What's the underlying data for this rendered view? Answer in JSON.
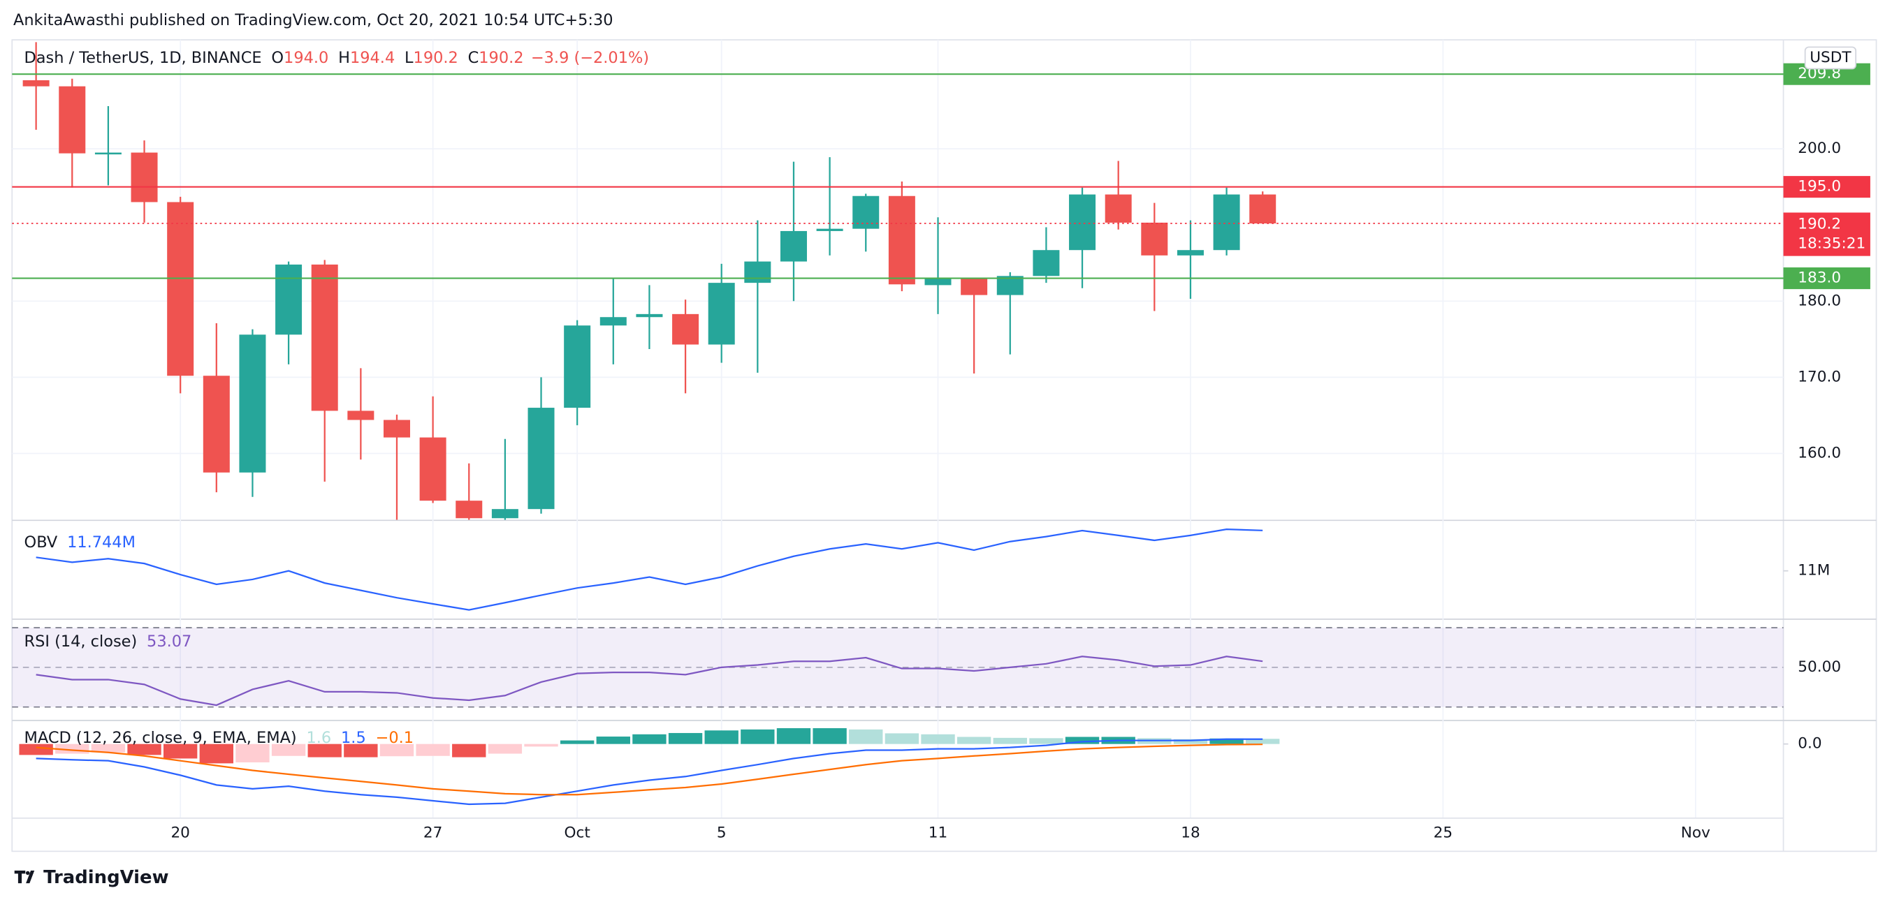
{
  "header": {
    "text": "AnkitaAwasthi published on TradingView.com, Oct 20, 2021 10:54 UTC+5:30"
  },
  "footer": {
    "text": "TradingView"
  },
  "chart_data": [
    {
      "type": "candlestick",
      "title": "Dash / TetherUS, 1D, BINANCE",
      "ohlc_legend": [
        {
          "key": "O",
          "value": "194.0"
        },
        {
          "key": "H",
          "value": "194.4"
        },
        {
          "key": "L",
          "value": "190.2"
        },
        {
          "key": "C",
          "value": "190.2"
        }
      ],
      "change": "−3.9 (−2.01%)",
      "currency": "USDT",
      "x": [
        "2021-09-16",
        "2021-09-17",
        "2021-09-18",
        "2021-09-19",
        "2021-09-20",
        "2021-09-21",
        "2021-09-22",
        "2021-09-23",
        "2021-09-24",
        "2021-09-25",
        "2021-09-26",
        "2021-09-27",
        "2021-09-28",
        "2021-09-29",
        "2021-09-30",
        "2021-10-01",
        "2021-10-02",
        "2021-10-03",
        "2021-10-04",
        "2021-10-05",
        "2021-10-06",
        "2021-10-07",
        "2021-10-08",
        "2021-10-09",
        "2021-10-10",
        "2021-10-11",
        "2021-10-12",
        "2021-10-13",
        "2021-10-14",
        "2021-10-15",
        "2021-10-16",
        "2021-10-17",
        "2021-10-18",
        "2021-10-19",
        "2021-10-20"
      ],
      "open": [
        209.0,
        208.2,
        199.4,
        199.5,
        193.0,
        170.2,
        157.5,
        175.6,
        184.8,
        165.6,
        164.4,
        162.1,
        153.8,
        151.5,
        152.7,
        166.0,
        176.8,
        177.9,
        178.3,
        174.3,
        182.4,
        185.2,
        189.2,
        189.5,
        193.8,
        182.1,
        183.0,
        180.8,
        183.3,
        186.7,
        194.0,
        190.3,
        186.0,
        186.7,
        194.0
      ],
      "high": [
        214.0,
        209.2,
        205.6,
        201.1,
        193.7,
        177.1,
        176.3,
        185.2,
        185.4,
        171.2,
        165.1,
        167.5,
        158.7,
        161.9,
        170.0,
        177.5,
        183.0,
        182.1,
        180.2,
        184.9,
        190.6,
        198.3,
        198.9,
        194.1,
        195.7,
        191.0,
        183.0,
        183.8,
        189.7,
        194.9,
        198.4,
        192.9,
        190.6,
        194.9,
        194.4
      ],
      "low": [
        202.5,
        194.9,
        195.2,
        190.3,
        167.9,
        154.9,
        154.3,
        171.7,
        156.3,
        159.2,
        151.3,
        153.5,
        151.3,
        151.3,
        152.1,
        163.7,
        171.7,
        173.7,
        167.9,
        171.9,
        170.6,
        180.0,
        186.0,
        186.5,
        181.3,
        178.3,
        170.5,
        173.0,
        182.4,
        181.7,
        189.4,
        178.7,
        180.3,
        186.0,
        190.2
      ],
      "close": [
        208.2,
        199.4,
        199.5,
        193.0,
        170.2,
        157.5,
        175.6,
        184.8,
        165.6,
        164.4,
        162.1,
        153.8,
        151.5,
        152.7,
        166.0,
        176.8,
        177.9,
        178.3,
        174.3,
        182.4,
        185.2,
        189.2,
        189.5,
        193.8,
        182.2,
        183.0,
        180.8,
        183.3,
        186.7,
        194.0,
        190.3,
        186.0,
        186.7,
        194.0,
        190.2
      ],
      "up_color": "#26a69a",
      "down_color": "#ef5350",
      "xlim": [
        "2021-09-15",
        "2021-11-03"
      ],
      "xticks": [
        {
          "value": "2021-09-20",
          "label": "20"
        },
        {
          "value": "2021-09-27",
          "label": "27"
        },
        {
          "value": "2021-10-01",
          "label": "Oct"
        },
        {
          "value": "2021-10-05",
          "label": "5"
        },
        {
          "value": "2021-10-11",
          "label": "11"
        },
        {
          "value": "2021-10-18",
          "label": "18"
        },
        {
          "value": "2021-10-25",
          "label": "25"
        },
        {
          "value": "2021-11-01",
          "label": "Nov"
        }
      ],
      "ylim": [
        151.3,
        214.3
      ],
      "yticks": [
        {
          "value": 160,
          "label": "160.0"
        },
        {
          "value": 170,
          "label": "170.0"
        },
        {
          "value": 180,
          "label": "180.0"
        },
        {
          "value": 200,
          "label": "200.0"
        }
      ],
      "grid": true,
      "hlines": [
        {
          "value": 209.8,
          "label": "209.8",
          "color": "#4caf50"
        },
        {
          "value": 195.0,
          "label": "195.0",
          "color": "#f23645"
        },
        {
          "value": 183.0,
          "label": "183.0",
          "color": "#4caf50"
        }
      ],
      "last_price": {
        "value": 190.2,
        "label": "190.2",
        "countdown": "18:35:21",
        "color": "#f23645"
      }
    },
    {
      "type": "line",
      "title": "OBV",
      "series": [
        {
          "name": "OBV",
          "color": "#2962ff",
          "legend_label": "11.744M",
          "values": [
            11.248,
            11.158,
            11.225,
            11.135,
            10.932,
            10.752,
            10.842,
            11.0,
            10.775,
            10.64,
            10.505,
            10.392,
            10.279,
            10.414,
            10.55,
            10.685,
            10.775,
            10.887,
            10.752,
            10.887,
            11.09,
            11.27,
            11.405,
            11.495,
            11.405,
            11.518,
            11.383,
            11.541,
            11.631,
            11.743,
            11.653,
            11.563,
            11.653,
            11.766,
            11.744
          ]
        }
      ],
      "ylim": [
        10.12,
        11.92
      ],
      "yticks": [
        {
          "value": 11,
          "label": "11M"
        }
      ]
    },
    {
      "type": "line",
      "title": "RSI (14, close)",
      "series": [
        {
          "name": "RSI",
          "color": "#7e57c2",
          "values": [
            46.3,
            43.8,
            43.8,
            41.4,
            34.0,
            30.9,
            38.9,
            43.2,
            37.7,
            37.7,
            37.1,
            34.6,
            33.4,
            35.8,
            42.6,
            46.9,
            47.5,
            47.5,
            46.3,
            50.0,
            51.2,
            53.1,
            53.1,
            54.9,
            49.4,
            49.4,
            48.2,
            50.0,
            51.8,
            55.5,
            53.7,
            50.6,
            51.2,
            55.5,
            53.07
          ]
        }
      ],
      "band": [
        30,
        70
      ],
      "band_color": "#7e57c2",
      "ylim": [
        23.5,
        74
      ],
      "yticks": [
        {
          "value": 50,
          "label": "50.00"
        },
        30,
        70
      ]
    },
    {
      "type": "macd",
      "title": "MACD (12, 26, close, 9, EMA, EMA)",
      "series": [
        {
          "name": "Histogram",
          "kind": "histogram",
          "color": "#b2dfdb",
          "legend_label": "1.6",
          "colors": {
            "up_grow": "#26a69a",
            "up_fall": "#b2dfdb",
            "down_grow": "#ef5350",
            "down_fall": "#ffcdd2"
          },
          "values": [
            -3.4,
            -3.0,
            -2.6,
            -3.4,
            -4.5,
            -6.0,
            -5.7,
            -3.7,
            -4.1,
            -4.1,
            -3.8,
            -3.7,
            -4.1,
            -3.0,
            -0.8,
            1.1,
            2.3,
            3.0,
            3.4,
            4.2,
            4.5,
            4.9,
            4.9,
            4.5,
            3.3,
            3.0,
            2.2,
            1.9,
            1.8,
            2.2,
            2.2,
            1.8,
            1.5,
            1.7,
            1.6
          ]
        },
        {
          "name": "MACD",
          "kind": "line",
          "color": "#2962ff",
          "legend_label": "1.5",
          "values": [
            -4.5,
            -4.9,
            -5.2,
            -7.1,
            -9.7,
            -12.7,
            -13.9,
            -13.1,
            -14.6,
            -15.7,
            -16.5,
            -17.6,
            -18.7,
            -18.4,
            -16.5,
            -14.6,
            -12.7,
            -11.2,
            -10.1,
            -8.2,
            -6.4,
            -4.5,
            -3.0,
            -1.9,
            -1.9,
            -1.5,
            -1.5,
            -1.1,
            -0.4,
            0.7,
            1.1,
            1.1,
            1.1,
            1.5,
            1.5
          ]
        },
        {
          "name": "Signal",
          "kind": "line",
          "color": "#ff6d00",
          "legend_label": "−0.1",
          "values": [
            -1.1,
            -1.9,
            -2.6,
            -3.7,
            -5.2,
            -6.7,
            -8.2,
            -9.4,
            -10.5,
            -11.6,
            -12.7,
            -13.9,
            -14.6,
            -15.4,
            -15.7,
            -15.7,
            -15.0,
            -14.2,
            -13.5,
            -12.4,
            -10.9,
            -9.4,
            -7.9,
            -6.4,
            -5.2,
            -4.5,
            -3.7,
            -3.0,
            -2.2,
            -1.5,
            -1.1,
            -0.7,
            -0.4,
            -0.2,
            -0.1
          ]
        }
      ],
      "ylim": [
        -22.8,
        7.1
      ],
      "yticks": [
        {
          "value": 0,
          "label": "0.0"
        }
      ]
    }
  ]
}
